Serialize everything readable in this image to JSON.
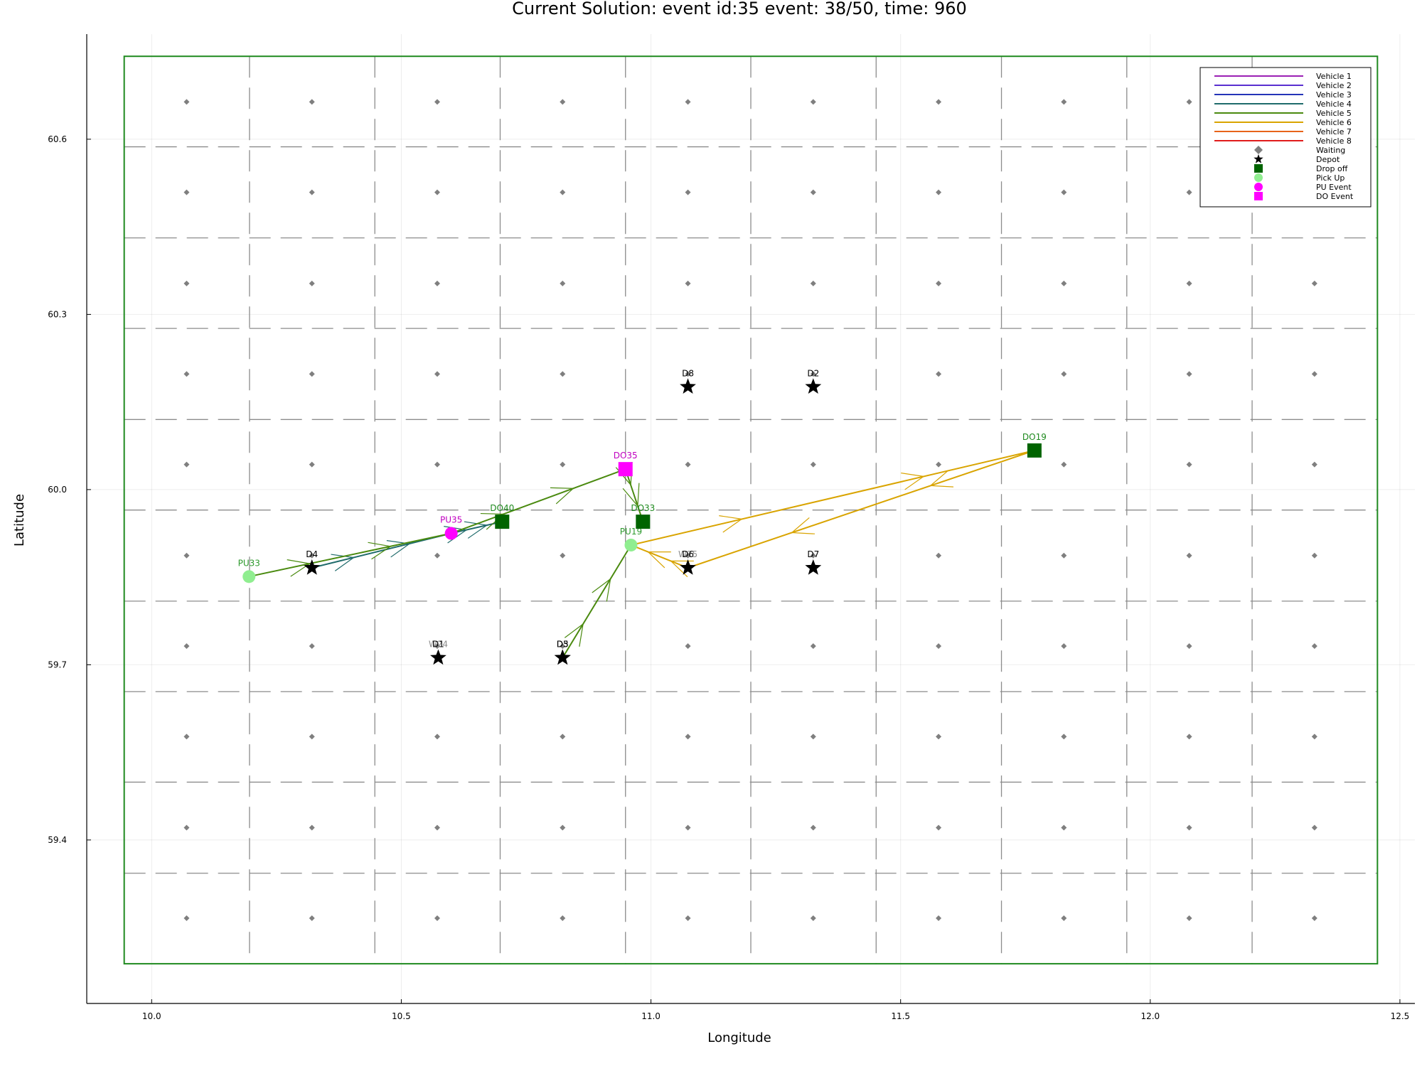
{
  "chart_data": {
    "type": "scatter",
    "title": "Current Solution: event id:35 event: 38/50, time: 960",
    "xlabel": "Longitude",
    "ylabel": "Latitude",
    "xlim": [
      9.87,
      12.53
    ],
    "ylim": [
      59.12,
      60.78
    ],
    "xticks": [
      10.0,
      10.5,
      11.0,
      11.5,
      12.0,
      12.5
    ],
    "xtick_labels": [
      "10.0",
      "10.5",
      "11.0",
      "11.5",
      "12.0",
      "12.5"
    ],
    "yticks": [
      59.4,
      59.7,
      60.0,
      60.3,
      60.6
    ],
    "ytick_labels": [
      "59.4",
      "59.7",
      "60.0",
      "60.3",
      "60.6"
    ],
    "grid": true,
    "legend_position": "top-right",
    "area_bounds": {
      "lon": [
        9.945,
        12.455
      ],
      "lat": [
        59.188,
        60.742
      ]
    },
    "zone_boundaries": {
      "lon": [
        10.196,
        10.447,
        10.698,
        10.949,
        11.2,
        11.451,
        11.702,
        11.953,
        12.204
      ],
      "lat": [
        59.343,
        59.499,
        59.654,
        59.809,
        59.965,
        60.12,
        60.276,
        60.431,
        60.587
      ]
    },
    "waiting_points": {
      "lon": [
        10.07,
        10.321,
        10.572,
        10.823,
        11.074,
        11.325,
        11.576,
        11.827,
        12.078,
        12.329
      ],
      "lat": [
        59.266,
        59.421,
        59.577,
        59.732,
        59.887,
        60.043,
        60.198,
        60.353,
        60.509,
        60.664
      ]
    },
    "legend": [
      {
        "label": "Vehicle 1",
        "kind": "line",
        "color": "#9b1fb4"
      },
      {
        "label": "Vehicle 2",
        "kind": "line",
        "color": "#5a2fd0"
      },
      {
        "label": "Vehicle 3",
        "kind": "line",
        "color": "#2534b8"
      },
      {
        "label": "Vehicle 4",
        "kind": "line",
        "color": "#1f6b6b"
      },
      {
        "label": "Vehicle 5",
        "kind": "line",
        "color": "#4a8a0f"
      },
      {
        "label": "Vehicle 6",
        "kind": "line",
        "color": "#d9a400"
      },
      {
        "label": "Vehicle 7",
        "kind": "line",
        "color": "#e8641a"
      },
      {
        "label": "Vehicle 8",
        "kind": "line",
        "color": "#e01b1b"
      },
      {
        "label": "Waiting",
        "kind": "diamond",
        "color": "#7f7f7f"
      },
      {
        "label": "Depot",
        "kind": "star",
        "color": "#000000"
      },
      {
        "label": "Drop off",
        "kind": "square",
        "color": "#006400"
      },
      {
        "label": "Pick Up",
        "kind": "circle",
        "color": "#90ee90"
      },
      {
        "label": "PU Event",
        "kind": "circle",
        "color": "#ff00ff"
      },
      {
        "label": "DO Event",
        "kind": "square",
        "color": "#ff00ff"
      }
    ],
    "depots": [
      {
        "label": "D1",
        "lon": 10.574,
        "lat": 59.712
      },
      {
        "label": "D2",
        "lon": 11.325,
        "lat": 60.176
      },
      {
        "label": "D3",
        "lon": 10.823,
        "lat": 59.712
      },
      {
        "label": "D4",
        "lon": 10.321,
        "lat": 59.866
      },
      {
        "label": "D5",
        "lon": 10.823,
        "lat": 59.712
      },
      {
        "label": "D6",
        "lon": 11.074,
        "lat": 59.866
      },
      {
        "label": "D7",
        "lon": 11.325,
        "lat": 59.866
      },
      {
        "label": "D8",
        "lon": 11.074,
        "lat": 60.176
      }
    ],
    "waiting_labels": [
      {
        "label": "W24",
        "lon": 10.574,
        "lat": 59.712
      },
      {
        "label": "W25",
        "lon": 11.074,
        "lat": 59.866
      }
    ],
    "pickups": [
      {
        "label": "PU33",
        "lon": 10.195,
        "lat": 59.851
      },
      {
        "label": "PU19",
        "lon": 10.96,
        "lat": 59.905
      }
    ],
    "dropoffs": [
      {
        "label": "DO40",
        "lon": 10.702,
        "lat": 59.945
      },
      {
        "label": "DO33",
        "lon": 10.984,
        "lat": 59.945
      },
      {
        "label": "DO19",
        "lon": 11.768,
        "lat": 60.067
      }
    ],
    "pu_events": [
      {
        "label": "PU35",
        "lon": 10.6,
        "lat": 59.925
      }
    ],
    "do_events": [
      {
        "label": "DO35",
        "lon": 10.949,
        "lat": 60.035
      }
    ],
    "routes": [
      {
        "vehicle": "Vehicle 4",
        "color": "#1f6b6b",
        "lon": [
          10.321,
          10.6,
          10.702
        ],
        "lat": [
          59.866,
          59.925,
          59.945
        ]
      },
      {
        "vehicle": "Vehicle 5",
        "color": "#4a8a0f",
        "lon": [
          10.195,
          10.6,
          10.949,
          10.984
        ],
        "lat": [
          59.851,
          59.925,
          60.035,
          59.945
        ]
      },
      {
        "vehicle": "Vehicle 5",
        "color": "#4a8a0f",
        "lon": [
          10.823,
          10.96
        ],
        "lat": [
          59.712,
          59.905
        ]
      },
      {
        "vehicle": "Vehicle 6",
        "color": "#d9a400",
        "lon": [
          10.96,
          11.768,
          11.074,
          10.96
        ],
        "lat": [
          59.905,
          60.067,
          59.866,
          59.905
        ]
      }
    ]
  }
}
